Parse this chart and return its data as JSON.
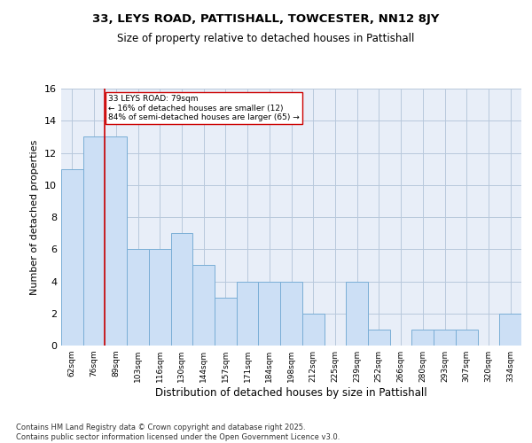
{
  "title": "33, LEYS ROAD, PATTISHALL, TOWCESTER, NN12 8JY",
  "subtitle": "Size of property relative to detached houses in Pattishall",
  "xlabel": "Distribution of detached houses by size in Pattishall",
  "ylabel": "Number of detached properties",
  "categories": [
    "62sqm",
    "76sqm",
    "89sqm",
    "103sqm",
    "116sqm",
    "130sqm",
    "144sqm",
    "157sqm",
    "171sqm",
    "184sqm",
    "198sqm",
    "212sqm",
    "225sqm",
    "239sqm",
    "252sqm",
    "266sqm",
    "280sqm",
    "293sqm",
    "307sqm",
    "320sqm",
    "334sqm"
  ],
  "values": [
    11,
    13,
    13,
    6,
    6,
    7,
    5,
    3,
    4,
    4,
    4,
    2,
    0,
    4,
    1,
    0,
    1,
    1,
    1,
    0,
    2
  ],
  "bar_color": "#ccdff5",
  "bar_edge_color": "#7aaed6",
  "red_line_x": 1.5,
  "annotation_text": "33 LEYS ROAD: 79sqm\n← 16% of detached houses are smaller (12)\n84% of semi-detached houses are larger (65) →",
  "annotation_box_color": "#ffffff",
  "annotation_box_edge": "#cc0000",
  "red_line_color": "#cc0000",
  "grid_color": "#b8c8dc",
  "background_color": "#e8eef8",
  "footer": "Contains HM Land Registry data © Crown copyright and database right 2025.\nContains public sector information licensed under the Open Government Licence v3.0.",
  "ylim": [
    0,
    16
  ],
  "yticks": [
    0,
    2,
    4,
    6,
    8,
    10,
    12,
    14,
    16
  ]
}
